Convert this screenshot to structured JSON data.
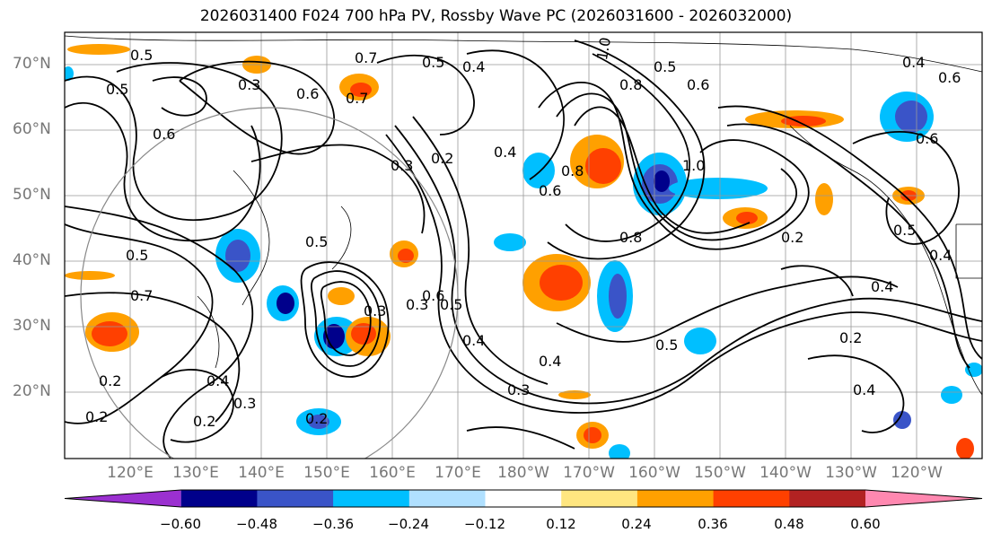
{
  "title": "2026031400 F024 700 hPa PV, Rossby Wave PC (2026031600 - 2026032000)",
  "lat_labels": [
    "70°N",
    "60°N",
    "50°N",
    "40°N",
    "30°N",
    "20°N"
  ],
  "lon_labels": [
    "120°E",
    "130°E",
    "140°E",
    "150°E",
    "160°E",
    "170°E",
    "180°W",
    "170°W",
    "160°W",
    "150°W",
    "140°W",
    "130°W",
    "120°W"
  ],
  "colorbar": {
    "ticks": [
      "−0.60",
      "−0.48",
      "−0.36",
      "−0.24",
      "−0.12",
      "0.12",
      "0.24",
      "0.36",
      "0.48",
      "0.60"
    ],
    "colors": [
      "#9b30d0",
      "#00008b",
      "#3a54c8",
      "#00bfff",
      "#b0e0ff",
      "#ffffff",
      "#ffe680",
      "#ffa000",
      "#ff4000",
      "#b22222",
      "#ff88b0"
    ]
  },
  "contour_labels": [
    "0.5",
    "0.7",
    "0.5",
    "0.4",
    "1.0",
    "0.4",
    "0.6",
    "0.7",
    "0.6",
    "0.5",
    "0.3",
    "0.2",
    "0.8",
    "0.8",
    "1.0",
    "0.6",
    "0.4",
    "0.3",
    "0.5",
    "0.7",
    "0.3",
    "0.5",
    "0.4",
    "0.3",
    "0.2",
    "0.4",
    "0.2",
    "0.3",
    "0.2",
    "0.5",
    "0.4",
    "0.2",
    "0.5",
    "0.4",
    "0.6",
    "0.5",
    "0.2",
    "0.4",
    "0.3",
    "0.2",
    "0.6",
    "0.5",
    "0.6",
    "0.8",
    "0.4",
    "0.6"
  ]
}
